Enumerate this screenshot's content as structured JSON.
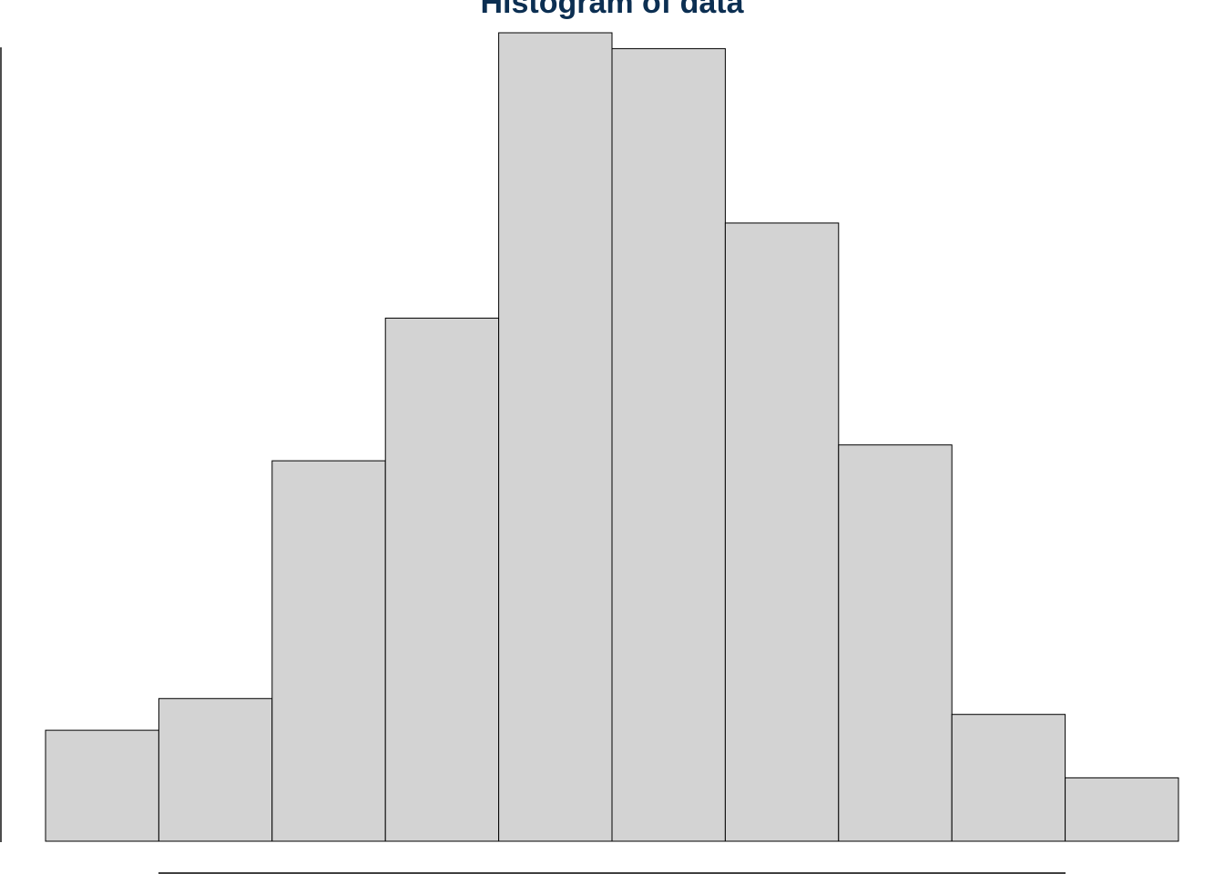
{
  "chart_data": {
    "type": "bar",
    "title": "Histogram of data",
    "xlabel": "",
    "ylabel": "",
    "bins": 10,
    "counts": [
      7,
      9,
      24,
      33,
      51,
      50,
      39,
      25,
      8,
      4
    ],
    "ylim": [
      0,
      51
    ],
    "grid": false,
    "legend": "none",
    "colors": {
      "bar_fill": "#d3d3d3",
      "bar_stroke": "#000000",
      "title": "#0c2f52",
      "axis": "#000000"
    }
  }
}
